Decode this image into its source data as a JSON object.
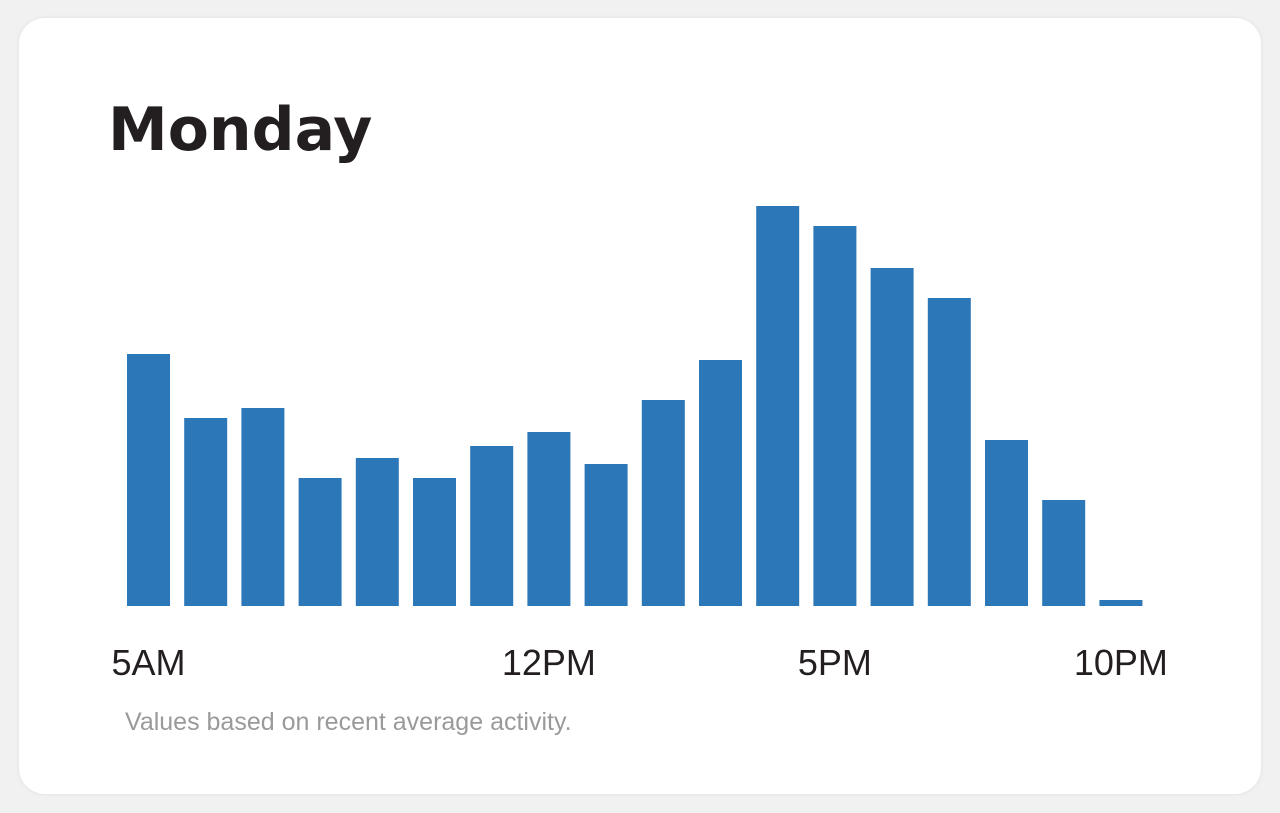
{
  "card": {
    "title": "Monday",
    "footnote": "Values based on recent average activity."
  },
  "chart_data": {
    "type": "bar",
    "title": "Monday",
    "xlabel": "",
    "ylabel": "",
    "grid": false,
    "legend": "none",
    "color": "#2b77b7",
    "categories": [
      "5AM",
      "6AM",
      "7AM",
      "8AM",
      "9AM",
      "10AM",
      "11AM",
      "12PM",
      "1PM",
      "2PM",
      "3PM",
      "4PM",
      "5PM",
      "6PM",
      "7PM",
      "8PM",
      "9PM",
      "10PM"
    ],
    "values": [
      63,
      47,
      49.5,
      32,
      37,
      32,
      40,
      43.5,
      35.5,
      51.5,
      61.5,
      100,
      95,
      84.5,
      77,
      41.5,
      26.5,
      1.5
    ],
    "ylim": [
      0,
      100
    ],
    "tick_labels": [
      {
        "category": "5AM",
        "label": "5AM"
      },
      {
        "category": "12PM",
        "label": "12PM"
      },
      {
        "category": "5PM",
        "label": "5PM"
      },
      {
        "category": "10PM",
        "label": "10PM"
      }
    ]
  }
}
